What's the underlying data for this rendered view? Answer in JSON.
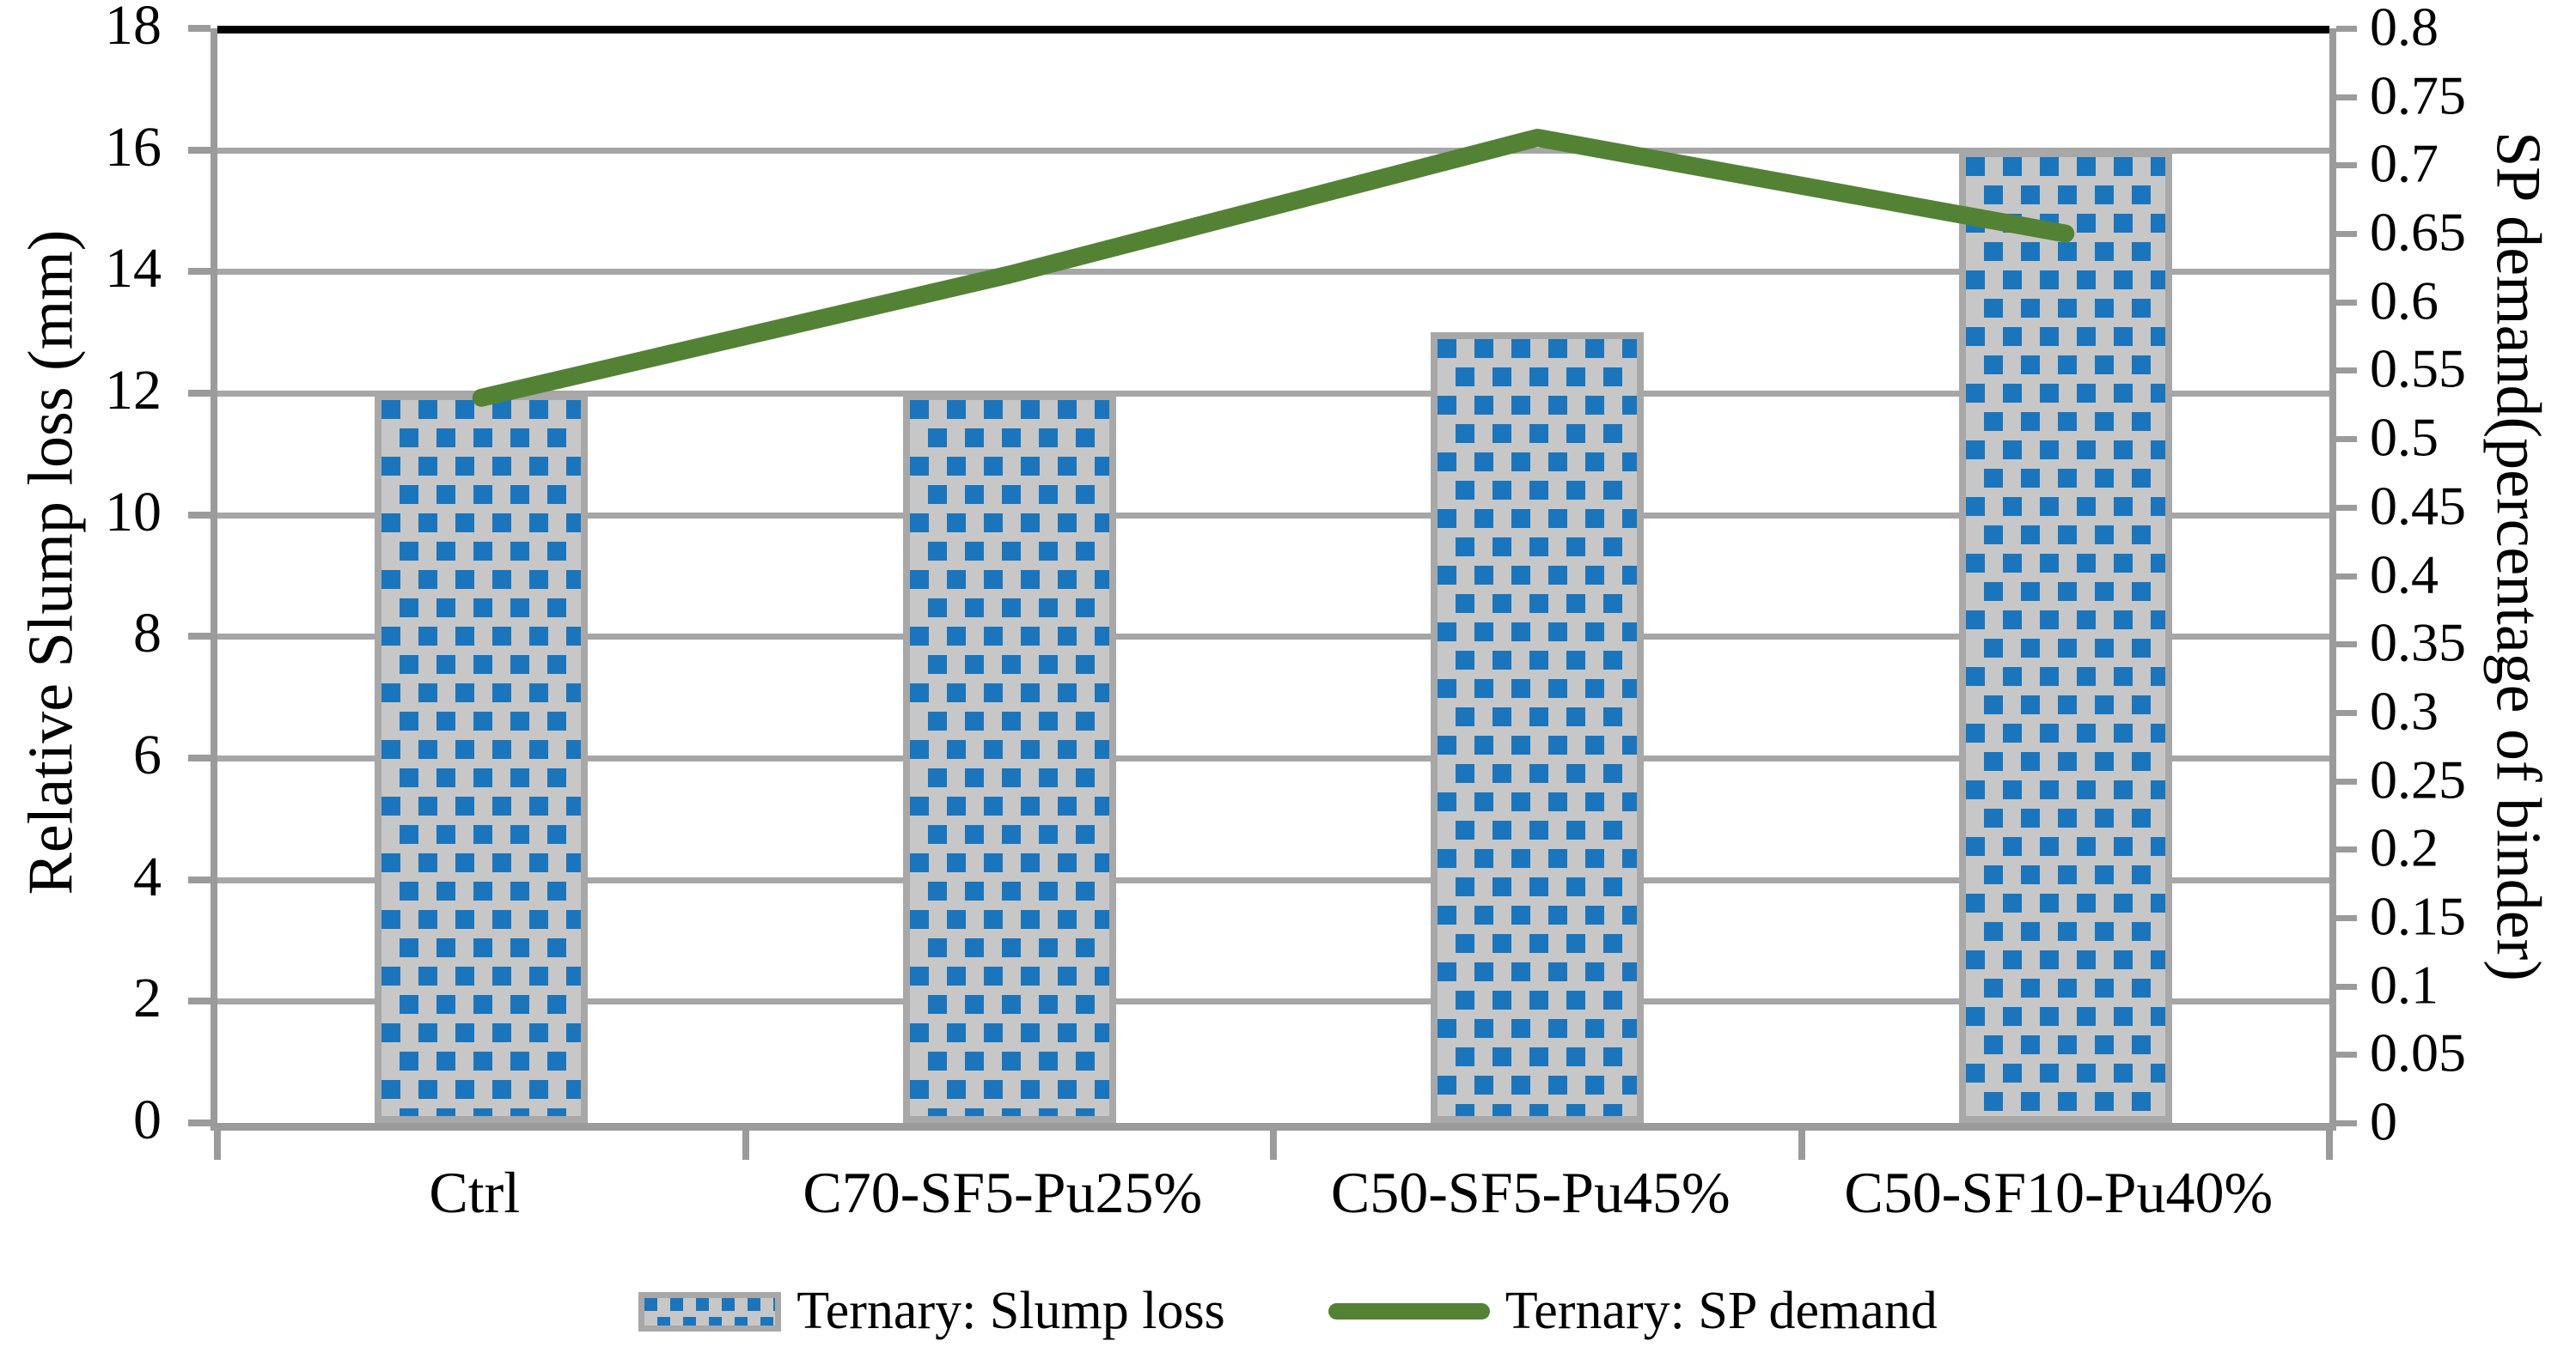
{
  "chart_data": {
    "type": "combo",
    "categories": [
      "Ctrl",
      "C70-SF5-Pu25%",
      "C50-SF5-Pu45%",
      "C50-SF10-Pu40%"
    ],
    "series": [
      {
        "name": "Ternary: Slump loss",
        "type": "bar",
        "axis": "left",
        "values": [
          12,
          12,
          13,
          16
        ]
      },
      {
        "name": "Ternary: SP demand",
        "type": "line",
        "axis": "right",
        "values": [
          0.53,
          0.62,
          0.72,
          0.65
        ]
      }
    ],
    "left_axis": {
      "title": "Relative Slump loss (mm)",
      "lim": [
        0,
        18
      ],
      "tick_step": 2,
      "tick_labels": [
        "0",
        "2",
        "4",
        "6",
        "8",
        "10",
        "12",
        "14",
        "16",
        "18"
      ]
    },
    "right_axis": {
      "title": "SP demand(percentage of binder)",
      "lim": [
        0,
        0.8
      ],
      "tick_step": 0.05,
      "tick_labels": [
        "0",
        "0.05",
        "0.1",
        "0.15",
        "0.2",
        "0.25",
        "0.3",
        "0.35",
        "0.4",
        "0.45",
        "0.5",
        "0.55",
        "0.6",
        "0.65",
        "0.7",
        "0.75",
        "0.8"
      ]
    },
    "legend": {
      "position": "bottom",
      "entries": [
        {
          "label": "Ternary: Slump loss",
          "swatch": "bar-pattern"
        },
        {
          "label": "Ternary: SP demand",
          "swatch": "line"
        }
      ]
    },
    "grid": "horizontal gridlines every 2 left-axis units; top (18) border black; no vertical gridlines",
    "colors": {
      "bar_dot": "#1b75bc",
      "bar_background": "#c7c7c7",
      "bar_border": "#a8a8a8",
      "line": "#548235",
      "gridline": "#a6a6a6",
      "axis": "#9b9b9b",
      "top_border": "#000000",
      "text": "#000000",
      "background": "#ffffff"
    }
  }
}
